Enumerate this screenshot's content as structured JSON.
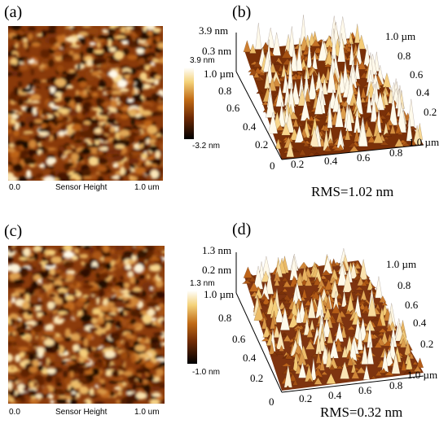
{
  "panel_a": {
    "label": "(a)",
    "x_start": "0.0",
    "caption": "Sensor Height",
    "x_end": "1.0 um",
    "scale_max": "3.9 nm",
    "scale_min": "-3.2 nm"
  },
  "panel_b": {
    "label": "(b)",
    "z_labels": [
      "3.9 nm",
      "0.3 nm"
    ],
    "y_labels": [
      "1.0 µm",
      "0.8",
      "0.6",
      "0.4",
      "0.2",
      "0"
    ],
    "right_labels": [
      "1.0 µm",
      "0.8",
      "0.6",
      "0.4",
      "0.2"
    ],
    "x_labels": [
      "0.2",
      "0.4",
      "0.6",
      "0.8",
      "1.0 µm"
    ],
    "rms": "RMS=1.02 nm"
  },
  "panel_c": {
    "label": "(c)",
    "x_start": "0.0",
    "caption": "Sensor Height",
    "x_end": "1.0 um",
    "scale_max": "1.3 nm",
    "scale_min": "-1.0 nm"
  },
  "panel_d": {
    "label": "(d)",
    "z_labels": [
      "1.3 nm",
      "0.2 nm"
    ],
    "y_labels": [
      "1.0 µm",
      "0.8",
      "0.6",
      "0.4",
      "0.2",
      "0"
    ],
    "right_labels": [
      "1.0 µm",
      "0.8",
      "0.6",
      "0.4",
      "0.2"
    ],
    "x_labels": [
      "0.2",
      "0.4",
      "0.6",
      "0.8",
      "1.0 µm"
    ],
    "rms": "RMS=0.32 nm"
  },
  "colors": {
    "afm_dark": "#2a0a00",
    "afm_mid": "#a0440a",
    "afm_light": "#f8d890"
  }
}
